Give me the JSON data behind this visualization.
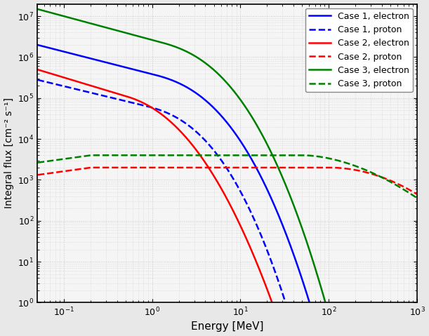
{
  "xlabel": "Energy [MeV]",
  "ylabel": "Integral flux [cm⁻² s⁻¹]",
  "xlim": [
    0.05,
    1000
  ],
  "ylim": [
    1.0,
    20000000.0
  ],
  "legend_labels": [
    "Case 1, electron",
    "Case 1, proton",
    "Case 2, electron",
    "Case 2, proton",
    "Case 3, electron",
    "Case 3, proton"
  ],
  "fig_facecolor": "#e8e8e8",
  "ax_facecolor": "#f5f5f5",
  "grid_color": "#c8c8c8",
  "linewidth": 1.8
}
